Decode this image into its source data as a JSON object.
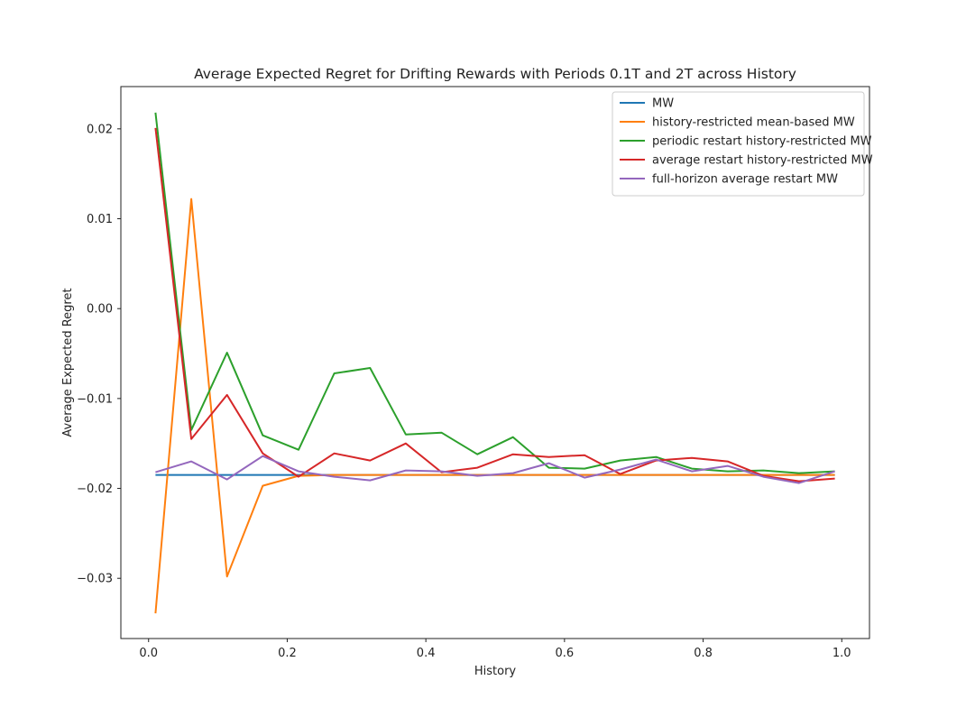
{
  "chart_data": {
    "type": "line",
    "title": "Average Expected Regret for Drifting Rewards with Periods 0.1T and 2T across History",
    "xlabel": "History",
    "ylabel": "Average Expected Regret",
    "xlim": [
      -0.04,
      1.04
    ],
    "ylim": [
      -0.0367,
      0.0247
    ],
    "xticks": [
      0.0,
      0.2,
      0.4,
      0.6,
      0.8,
      1.0
    ],
    "xtick_labels": [
      "0.0",
      "0.2",
      "0.4",
      "0.6",
      "0.8",
      "1.0"
    ],
    "yticks": [
      -0.03,
      -0.02,
      -0.01,
      0.0,
      0.01,
      0.02
    ],
    "ytick_labels": [
      "−0.03",
      "−0.02",
      "−0.01",
      "0.00",
      "0.01",
      "0.02"
    ],
    "grid": false,
    "legend_position": "top-right",
    "x": [
      0.01,
      0.0616,
      0.1132,
      0.1647,
      0.2163,
      0.2679,
      0.3195,
      0.3711,
      0.4226,
      0.4742,
      0.5258,
      0.5774,
      0.6289,
      0.6805,
      0.7321,
      0.7837,
      0.8353,
      0.8868,
      0.9384,
      0.99
    ],
    "series": [
      {
        "name": "MW",
        "color": "#1f77b4",
        "values": [
          -0.0185,
          -0.0185,
          -0.0185,
          -0.0185,
          -0.0185,
          -0.0185,
          -0.0185,
          -0.0185,
          -0.0185,
          -0.0185,
          -0.0185,
          -0.0185,
          -0.0185,
          -0.0185,
          -0.0185,
          -0.0185,
          -0.0185,
          -0.0185,
          -0.0185,
          -0.0185
        ]
      },
      {
        "name": "history-restricted mean-based MW",
        "color": "#ff7f0e",
        "values": [
          -0.0339,
          0.0122,
          -0.0298,
          -0.0197,
          -0.0186,
          -0.0185,
          -0.0185,
          -0.0185,
          -0.0185,
          -0.0185,
          -0.0185,
          -0.0185,
          -0.0185,
          -0.0185,
          -0.0185,
          -0.0185,
          -0.0185,
          -0.0185,
          -0.0185,
          -0.0185
        ]
      },
      {
        "name": "periodic restart history-restricted MW",
        "color": "#2ca02c",
        "values": [
          0.0218,
          -0.0135,
          -0.0049,
          -0.0141,
          -0.0157,
          -0.0072,
          -0.0066,
          -0.014,
          -0.0138,
          -0.0162,
          -0.0143,
          -0.0177,
          -0.0178,
          -0.0169,
          -0.0165,
          -0.0178,
          -0.0181,
          -0.018,
          -0.0183,
          -0.0181
        ]
      },
      {
        "name": "average restart history-restricted MW",
        "color": "#d62728",
        "values": [
          0.0201,
          -0.0145,
          -0.0096,
          -0.0161,
          -0.0187,
          -0.0161,
          -0.0169,
          -0.015,
          -0.0182,
          -0.0177,
          -0.0162,
          -0.0165,
          -0.0163,
          -0.0184,
          -0.0169,
          -0.0166,
          -0.017,
          -0.0186,
          -0.0192,
          -0.0189
        ]
      },
      {
        "name": "full-horizon average restart MW",
        "color": "#9467bd",
        "values": [
          -0.0182,
          -0.017,
          -0.019,
          -0.0164,
          -0.0181,
          -0.0187,
          -0.0191,
          -0.018,
          -0.0181,
          -0.0186,
          -0.0183,
          -0.0172,
          -0.0188,
          -0.0179,
          -0.0168,
          -0.0181,
          -0.0175,
          -0.0187,
          -0.0194,
          -0.0181
        ]
      }
    ]
  }
}
